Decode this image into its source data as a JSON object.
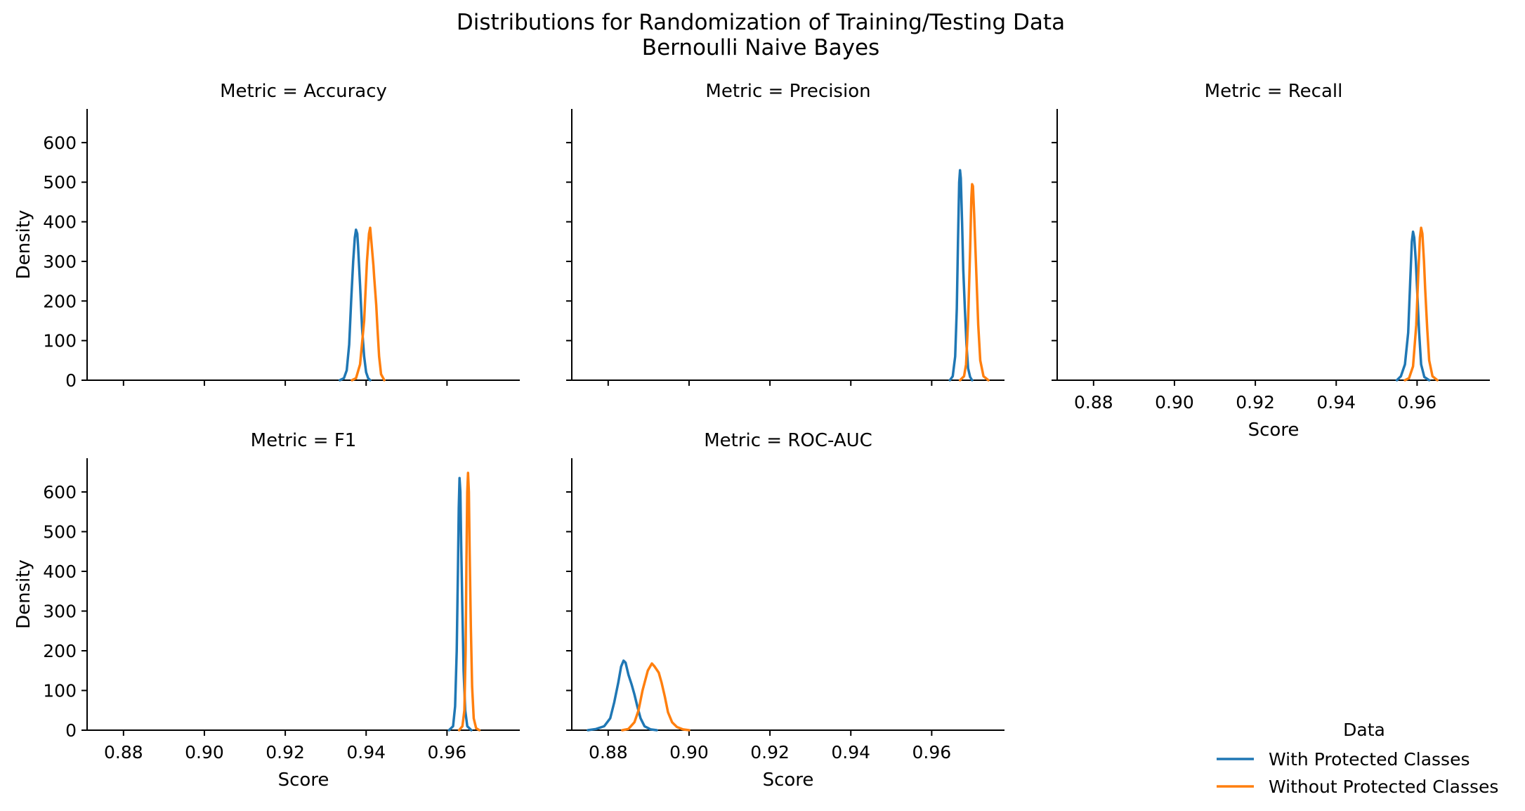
{
  "chart_data": {
    "type": "line",
    "title": "Distributions for Randomization of Training/Testing Data",
    "subtitle": "Bernoulli Naive Bayes",
    "xlabel": "Score",
    "ylabel": "Density",
    "xlim": [
      0.871,
      0.978
    ],
    "ylim": [
      0,
      685
    ],
    "xticks": [
      0.88,
      0.9,
      0.92,
      0.94,
      0.96
    ],
    "xtick_labels": [
      "0.88",
      "0.90",
      "0.92",
      "0.94",
      "0.96"
    ],
    "yticks": [
      0,
      100,
      200,
      300,
      400,
      500,
      600
    ],
    "ytick_labels": [
      "0",
      "100",
      "200",
      "300",
      "400",
      "500",
      "600"
    ],
    "grid": false,
    "legend": {
      "title": "Data",
      "placement": "lower-right",
      "entries": [
        {
          "label": "With Protected Classes",
          "color": "#1f77b4"
        },
        {
          "label": "Without Protected Classes",
          "color": "#ff7f0e"
        }
      ]
    },
    "facets": [
      {
        "title": "Metric = Accuracy",
        "series": [
          {
            "name": "With Protected Classes",
            "color": "#1f77b4",
            "points": [
              [
                0.9335,
                0
              ],
              [
                0.9345,
                5
              ],
              [
                0.9352,
                25
              ],
              [
                0.9358,
                90
              ],
              [
                0.9363,
                200
              ],
              [
                0.9368,
                300
              ],
              [
                0.9372,
                360
              ],
              [
                0.9375,
                380
              ],
              [
                0.9378,
                370
              ],
              [
                0.938,
                340
              ],
              [
                0.9385,
                240
              ],
              [
                0.939,
                130
              ],
              [
                0.9395,
                60
              ],
              [
                0.94,
                20
              ],
              [
                0.9405,
                5
              ],
              [
                0.941,
                0
              ]
            ]
          },
          {
            "name": "Without Protected Classes",
            "color": "#ff7f0e",
            "points": [
              [
                0.9365,
                0
              ],
              [
                0.9375,
                5
              ],
              [
                0.9385,
                40
              ],
              [
                0.9395,
                150
              ],
              [
                0.9402,
                300
              ],
              [
                0.9407,
                370
              ],
              [
                0.941,
                385
              ],
              [
                0.9413,
                350
              ],
              [
                0.9418,
                290
              ],
              [
                0.942,
                260
              ],
              [
                0.9425,
                190
              ],
              [
                0.9428,
                130
              ],
              [
                0.9432,
                60
              ],
              [
                0.9437,
                15
              ],
              [
                0.9445,
                0
              ]
            ]
          }
        ]
      },
      {
        "title": "Metric = Precision",
        "series": [
          {
            "name": "With Protected Classes",
            "color": "#1f77b4",
            "points": [
              [
                0.9645,
                0
              ],
              [
                0.9652,
                10
              ],
              [
                0.9658,
                60
              ],
              [
                0.9662,
                180
              ],
              [
                0.9665,
                350
              ],
              [
                0.9668,
                500
              ],
              [
                0.967,
                530
              ],
              [
                0.9672,
                510
              ],
              [
                0.9675,
                400
              ],
              [
                0.9678,
                280
              ],
              [
                0.9682,
                180
              ],
              [
                0.9686,
                90
              ],
              [
                0.969,
                30
              ],
              [
                0.9695,
                8
              ],
              [
                0.97,
                0
              ]
            ]
          },
          {
            "name": "Without Protected Classes",
            "color": "#ff7f0e",
            "points": [
              [
                0.967,
                0
              ],
              [
                0.968,
                10
              ],
              [
                0.9685,
                40
              ],
              [
                0.969,
                150
              ],
              [
                0.9695,
                330
              ],
              [
                0.9698,
                460
              ],
              [
                0.97,
                495
              ],
              [
                0.9702,
                490
              ],
              [
                0.9705,
                420
              ],
              [
                0.971,
                280
              ],
              [
                0.9715,
                140
              ],
              [
                0.972,
                50
              ],
              [
                0.9728,
                10
              ],
              [
                0.974,
                0
              ]
            ]
          }
        ]
      },
      {
        "title": "Metric = Recall",
        "series": [
          {
            "name": "With Protected Classes",
            "color": "#1f77b4",
            "points": [
              [
                0.955,
                0
              ],
              [
                0.956,
                10
              ],
              [
                0.957,
                40
              ],
              [
                0.9578,
                120
              ],
              [
                0.9583,
                250
              ],
              [
                0.9587,
                350
              ],
              [
                0.959,
                375
              ],
              [
                0.9593,
                360
              ],
              [
                0.9597,
                300
              ],
              [
                0.96,
                230
              ],
              [
                0.9605,
                120
              ],
              [
                0.961,
                40
              ],
              [
                0.9618,
                8
              ],
              [
                0.963,
                0
              ]
            ]
          },
          {
            "name": "Without Protected Classes",
            "color": "#ff7f0e",
            "points": [
              [
                0.957,
                0
              ],
              [
                0.958,
                5
              ],
              [
                0.959,
                35
              ],
              [
                0.9598,
                140
              ],
              [
                0.9603,
                270
              ],
              [
                0.9607,
                360
              ],
              [
                0.961,
                385
              ],
              [
                0.9613,
                370
              ],
              [
                0.9617,
                300
              ],
              [
                0.962,
                230
              ],
              [
                0.9625,
                130
              ],
              [
                0.963,
                50
              ],
              [
                0.9638,
                10
              ],
              [
                0.965,
                0
              ]
            ]
          }
        ]
      },
      {
        "title": "Metric = F1",
        "series": [
          {
            "name": "With Protected Classes",
            "color": "#1f77b4",
            "points": [
              [
                0.9605,
                0
              ],
              [
                0.9615,
                10
              ],
              [
                0.962,
                60
              ],
              [
                0.9624,
                200
              ],
              [
                0.9627,
                400
              ],
              [
                0.9629,
                560
              ],
              [
                0.9631,
                635
              ],
              [
                0.9633,
                600
              ],
              [
                0.9635,
                470
              ],
              [
                0.9638,
                300
              ],
              [
                0.9641,
                150
              ],
              [
                0.9645,
                50
              ],
              [
                0.965,
                10
              ],
              [
                0.966,
                0
              ]
            ]
          },
          {
            "name": "Without Protected Classes",
            "color": "#ff7f0e",
            "points": [
              [
                0.963,
                0
              ],
              [
                0.9638,
                10
              ],
              [
                0.9643,
                50
              ],
              [
                0.9646,
                200
              ],
              [
                0.9648,
                420
              ],
              [
                0.965,
                600
              ],
              [
                0.9652,
                648
              ],
              [
                0.9654,
                600
              ],
              [
                0.9656,
                450
              ],
              [
                0.9659,
                260
              ],
              [
                0.9662,
                110
              ],
              [
                0.9666,
                30
              ],
              [
                0.9672,
                5
              ],
              [
                0.968,
                0
              ]
            ]
          }
        ]
      },
      {
        "title": "Metric = ROC-AUC",
        "series": [
          {
            "name": "With Protected Classes",
            "color": "#1f77b4",
            "points": [
              [
                0.875,
                0
              ],
              [
                0.877,
                3
              ],
              [
                0.879,
                10
              ],
              [
                0.8805,
                30
              ],
              [
                0.8815,
                70
              ],
              [
                0.8825,
                120
              ],
              [
                0.8832,
                160
              ],
              [
                0.8838,
                175
              ],
              [
                0.8843,
                170
              ],
              [
                0.885,
                140
              ],
              [
                0.8858,
                115
              ],
              [
                0.8865,
                90
              ],
              [
                0.8872,
                60
              ],
              [
                0.888,
                30
              ],
              [
                0.889,
                10
              ],
              [
                0.8905,
                2
              ],
              [
                0.892,
                0
              ]
            ]
          },
          {
            "name": "Without Protected Classes",
            "color": "#ff7f0e",
            "points": [
              [
                0.8835,
                0
              ],
              [
                0.885,
                3
              ],
              [
                0.8865,
                20
              ],
              [
                0.8875,
                50
              ],
              [
                0.8885,
                100
              ],
              [
                0.8898,
                150
              ],
              [
                0.8908,
                168
              ],
              [
                0.8915,
                160
              ],
              [
                0.8925,
                145
              ],
              [
                0.8932,
                120
              ],
              [
                0.894,
                85
              ],
              [
                0.8948,
                45
              ],
              [
                0.8958,
                20
              ],
              [
                0.897,
                8
              ],
              [
                0.8985,
                2
              ],
              [
                0.9,
                0
              ]
            ]
          }
        ]
      }
    ]
  }
}
